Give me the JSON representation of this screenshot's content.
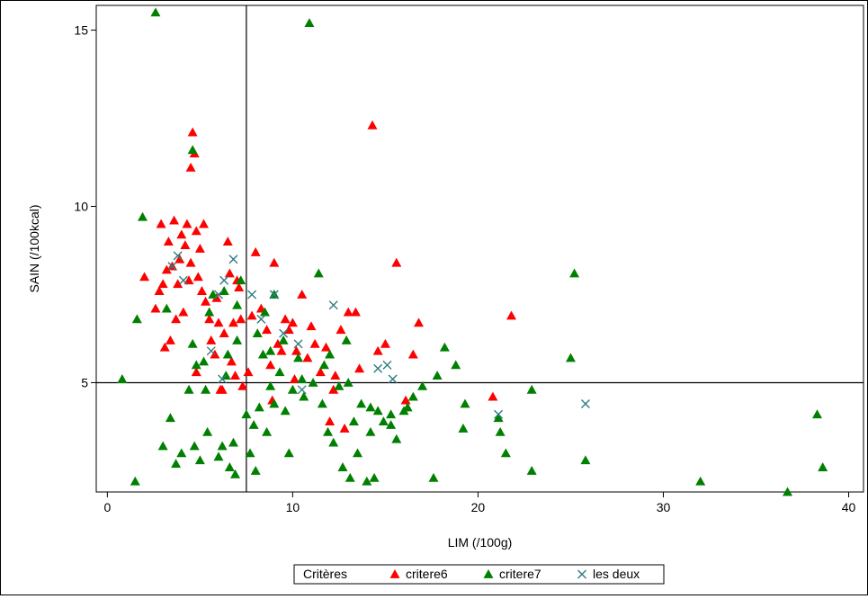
{
  "chart_data": {
    "type": "scatter",
    "xlabel": "LIM (/100g)",
    "ylabel": "SAIN (/100kcal)",
    "xlim": [
      -0.6,
      40.8
    ],
    "ylim": [
      1.9,
      15.7
    ],
    "xticks": [
      0,
      10,
      20,
      30,
      40
    ],
    "yticks": [
      5,
      10,
      15
    ],
    "reference_lines": {
      "x": 7.5,
      "y": 5
    },
    "grid": false,
    "legend": {
      "title": "Critères",
      "placement": "bottom-center"
    },
    "series": [
      {
        "name": "critere6",
        "marker": "triangle",
        "color": "#ff0000",
        "points": [
          [
            2.0,
            8.0
          ],
          [
            2.6,
            7.1
          ],
          [
            2.8,
            7.6
          ],
          [
            2.9,
            9.5
          ],
          [
            3.0,
            7.8
          ],
          [
            3.1,
            6.0
          ],
          [
            3.3,
            9.0
          ],
          [
            3.4,
            6.2
          ],
          [
            3.5,
            8.3
          ],
          [
            3.6,
            9.6
          ],
          [
            3.7,
            6.8
          ],
          [
            3.8,
            7.8
          ],
          [
            3.9,
            8.5
          ],
          [
            4.0,
            9.2
          ],
          [
            4.1,
            7.0
          ],
          [
            4.2,
            8.9
          ],
          [
            4.3,
            9.5
          ],
          [
            4.4,
            7.9
          ],
          [
            4.5,
            8.4
          ],
          [
            4.5,
            11.1
          ],
          [
            4.6,
            12.1
          ],
          [
            4.7,
            11.5
          ],
          [
            4.8,
            9.3
          ],
          [
            4.9,
            8.0
          ],
          [
            5.0,
            8.8
          ],
          [
            5.1,
            7.6
          ],
          [
            5.2,
            9.5
          ],
          [
            5.3,
            7.3
          ],
          [
            5.5,
            6.8
          ],
          [
            5.6,
            6.2
          ],
          [
            5.8,
            5.8
          ],
          [
            6.0,
            6.7
          ],
          [
            6.2,
            4.8
          ],
          [
            6.3,
            6.4
          ],
          [
            6.5,
            9.0
          ],
          [
            6.6,
            8.1
          ],
          [
            6.7,
            5.6
          ],
          [
            6.8,
            6.7
          ],
          [
            6.9,
            5.2
          ],
          [
            7.0,
            7.9
          ],
          [
            7.2,
            6.8
          ],
          [
            7.3,
            4.9
          ],
          [
            7.6,
            5.3
          ],
          [
            7.8,
            6.9
          ],
          [
            8.0,
            8.7
          ],
          [
            8.3,
            7.1
          ],
          [
            8.6,
            6.5
          ],
          [
            8.8,
            5.5
          ],
          [
            9.0,
            8.4
          ],
          [
            9.2,
            6.1
          ],
          [
            9.4,
            5.9
          ],
          [
            9.6,
            6.8
          ],
          [
            9.8,
            6.5
          ],
          [
            10.0,
            6.7
          ],
          [
            10.2,
            5.9
          ],
          [
            10.5,
            7.5
          ],
          [
            10.8,
            5.7
          ],
          [
            11.0,
            6.6
          ],
          [
            11.2,
            6.1
          ],
          [
            11.5,
            5.3
          ],
          [
            11.8,
            6.0
          ],
          [
            12.0,
            3.9
          ],
          [
            12.3,
            5.2
          ],
          [
            12.6,
            6.5
          ],
          [
            12.8,
            3.7
          ],
          [
            13.0,
            7.0
          ],
          [
            13.4,
            7.0
          ],
          [
            13.6,
            5.4
          ],
          [
            14.3,
            12.3
          ],
          [
            14.6,
            5.9
          ],
          [
            15.0,
            6.1
          ],
          [
            15.6,
            8.4
          ],
          [
            16.1,
            4.5
          ],
          [
            16.5,
            5.8
          ],
          [
            16.8,
            6.7
          ],
          [
            20.8,
            4.6
          ],
          [
            21.8,
            6.9
          ],
          [
            7.1,
            7.7
          ],
          [
            5.9,
            7.4
          ],
          [
            3.2,
            8.2
          ],
          [
            12.2,
            4.8
          ],
          [
            8.9,
            4.5
          ],
          [
            10.1,
            5.1
          ],
          [
            6.1,
            4.8
          ],
          [
            4.8,
            5.3
          ]
        ]
      },
      {
        "name": "critere7",
        "marker": "triangle",
        "color": "#008000",
        "points": [
          [
            0.8,
            5.1
          ],
          [
            1.5,
            2.2
          ],
          [
            1.6,
            6.8
          ],
          [
            1.9,
            9.7
          ],
          [
            2.6,
            15.5
          ],
          [
            3.0,
            3.2
          ],
          [
            3.2,
            7.1
          ],
          [
            3.4,
            4.0
          ],
          [
            3.7,
            2.7
          ],
          [
            4.0,
            3.0
          ],
          [
            4.4,
            4.8
          ],
          [
            4.6,
            11.6
          ],
          [
            4.7,
            3.2
          ],
          [
            4.8,
            5.5
          ],
          [
            5.0,
            2.8
          ],
          [
            5.2,
            5.6
          ],
          [
            5.4,
            3.6
          ],
          [
            5.7,
            7.5
          ],
          [
            6.0,
            2.9
          ],
          [
            6.2,
            3.2
          ],
          [
            6.4,
            5.2
          ],
          [
            6.6,
            2.6
          ],
          [
            6.8,
            3.3
          ],
          [
            6.9,
            2.4
          ],
          [
            7.0,
            6.2
          ],
          [
            7.2,
            7.9
          ],
          [
            7.5,
            4.1
          ],
          [
            7.7,
            3.0
          ],
          [
            7.9,
            3.8
          ],
          [
            8.0,
            2.5
          ],
          [
            8.2,
            4.3
          ],
          [
            8.4,
            5.8
          ],
          [
            8.6,
            3.6
          ],
          [
            8.8,
            4.9
          ],
          [
            9.0,
            4.4
          ],
          [
            9.3,
            5.3
          ],
          [
            9.6,
            4.2
          ],
          [
            9.8,
            3.0
          ],
          [
            10.0,
            4.8
          ],
          [
            10.3,
            5.7
          ],
          [
            10.6,
            4.6
          ],
          [
            10.9,
            15.2
          ],
          [
            11.1,
            5.0
          ],
          [
            11.4,
            8.1
          ],
          [
            11.6,
            4.4
          ],
          [
            11.9,
            3.6
          ],
          [
            12.2,
            3.3
          ],
          [
            12.5,
            4.9
          ],
          [
            12.7,
            2.6
          ],
          [
            12.9,
            6.2
          ],
          [
            13.1,
            2.3
          ],
          [
            13.3,
            3.9
          ],
          [
            13.5,
            3.0
          ],
          [
            13.7,
            4.4
          ],
          [
            14.0,
            2.2
          ],
          [
            14.2,
            3.6
          ],
          [
            14.4,
            2.3
          ],
          [
            14.6,
            4.2
          ],
          [
            14.9,
            3.9
          ],
          [
            15.3,
            3.8
          ],
          [
            15.6,
            3.4
          ],
          [
            16.0,
            4.2
          ],
          [
            16.5,
            4.6
          ],
          [
            17.0,
            4.9
          ],
          [
            17.6,
            2.3
          ],
          [
            17.8,
            5.2
          ],
          [
            18.2,
            6.0
          ],
          [
            18.8,
            5.5
          ],
          [
            19.2,
            3.7
          ],
          [
            19.3,
            4.4
          ],
          [
            21.1,
            4.0
          ],
          [
            21.2,
            3.6
          ],
          [
            21.5,
            3.0
          ],
          [
            22.9,
            2.5
          ],
          [
            22.9,
            4.8
          ],
          [
            25.0,
            5.7
          ],
          [
            25.2,
            8.1
          ],
          [
            25.8,
            2.8
          ],
          [
            32.0,
            2.2
          ],
          [
            36.7,
            1.9
          ],
          [
            38.3,
            4.1
          ],
          [
            38.6,
            2.6
          ],
          [
            5.5,
            7.0
          ],
          [
            6.3,
            7.6
          ],
          [
            7.0,
            7.2
          ],
          [
            8.5,
            7.0
          ],
          [
            9.0,
            7.5
          ],
          [
            9.5,
            6.2
          ],
          [
            10.5,
            5.1
          ],
          [
            12.0,
            5.8
          ],
          [
            13.0,
            5.0
          ],
          [
            14.2,
            4.3
          ],
          [
            15.3,
            4.1
          ],
          [
            16.2,
            4.3
          ],
          [
            8.1,
            6.4
          ],
          [
            6.5,
            5.8
          ],
          [
            4.6,
            6.1
          ],
          [
            5.3,
            4.8
          ],
          [
            11.7,
            5.5
          ],
          [
            8.8,
            5.9
          ]
        ]
      },
      {
        "name": "les deux",
        "marker": "x",
        "color": "#2e7d80",
        "points": [
          [
            3.5,
            8.3
          ],
          [
            3.8,
            8.6
          ],
          [
            4.1,
            7.9
          ],
          [
            5.6,
            5.9
          ],
          [
            6.0,
            7.5
          ],
          [
            6.3,
            7.9
          ],
          [
            6.8,
            8.5
          ],
          [
            7.8,
            7.5
          ],
          [
            8.3,
            6.8
          ],
          [
            9.0,
            7.5
          ],
          [
            9.5,
            6.4
          ],
          [
            10.3,
            6.1
          ],
          [
            10.5,
            4.8
          ],
          [
            12.2,
            7.2
          ],
          [
            14.6,
            5.4
          ],
          [
            15.1,
            5.5
          ],
          [
            15.4,
            5.1
          ],
          [
            21.1,
            4.1
          ],
          [
            25.8,
            4.4
          ],
          [
            6.2,
            5.1
          ]
        ]
      }
    ]
  }
}
